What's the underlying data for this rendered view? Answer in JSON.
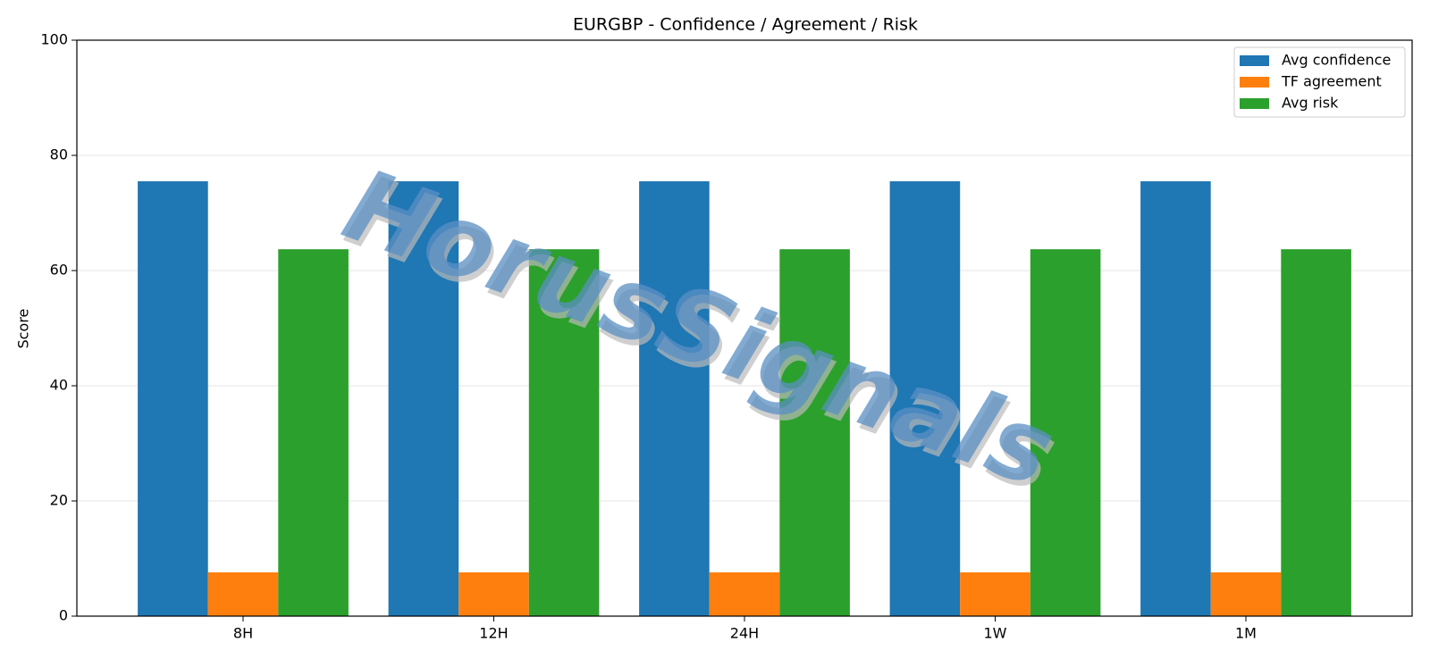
{
  "chart_data": {
    "type": "bar",
    "title": "EURGBP - Confidence / Agreement / Risk",
    "ylabel": "Score",
    "watermark": "HorusSignals",
    "categories": [
      "8H",
      "12H",
      "24H",
      "1W",
      "1M"
    ],
    "series": [
      {
        "name": "Avg confidence",
        "color": "#1f77b4",
        "values": [
          75.5,
          75.5,
          75.5,
          75.5,
          75.5
        ]
      },
      {
        "name": "TF agreement",
        "color": "#ff7f0e",
        "values": [
          7.6,
          7.6,
          7.6,
          7.6,
          7.6
        ]
      },
      {
        "name": "Avg risk",
        "color": "#2ca02c",
        "values": [
          63.7,
          63.7,
          63.7,
          63.7,
          63.7
        ]
      }
    ],
    "ylim": [
      0,
      100
    ],
    "yticks": [
      0,
      20,
      40,
      60,
      80,
      100
    ],
    "grid": true,
    "legend": "upper right"
  }
}
